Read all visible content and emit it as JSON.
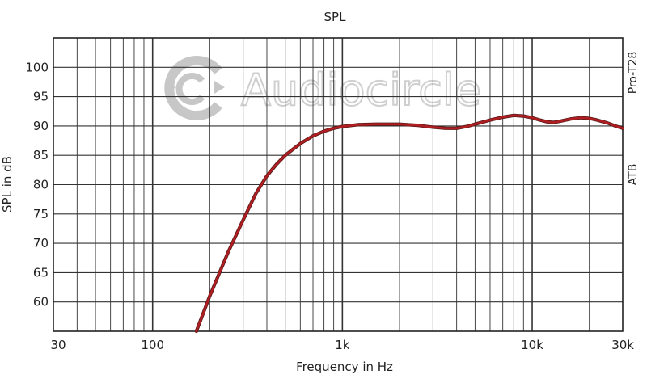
{
  "chart_data": {
    "type": "line",
    "title": "SPL",
    "xlabel": "Frequency in Hz",
    "ylabel": "SPL in dB",
    "x_scale": "log",
    "xlim": [
      30,
      30000
    ],
    "ylim": [
      55,
      105
    ],
    "x_tick_values": [
      30,
      100,
      1000,
      10000,
      30000
    ],
    "x_tick_labels": [
      "30",
      "100",
      "1k",
      "10k",
      "30k"
    ],
    "y_ticks": [
      60,
      65,
      70,
      75,
      80,
      85,
      90,
      95,
      100
    ],
    "grid": true,
    "right_labels": [
      "Pro-T28",
      "ATB"
    ],
    "watermark": "Audiocircle",
    "series": [
      {
        "color": "#b01e22",
        "x": [
          170,
          200,
          250,
          300,
          350,
          400,
          450,
          500,
          600,
          700,
          800,
          900,
          1000,
          1200,
          1500,
          2000,
          2500,
          3000,
          3500,
          4000,
          4500,
          5000,
          6000,
          7000,
          8000,
          9000,
          10000,
          11000,
          12000,
          13000,
          14000,
          16000,
          18000,
          20000,
          22000,
          25000,
          28000,
          30000
        ],
        "y": [
          55,
          61,
          68.5,
          74,
          78.5,
          81.5,
          83.5,
          85,
          87,
          88.3,
          89.1,
          89.6,
          89.9,
          90.2,
          90.3,
          90.3,
          90.1,
          89.8,
          89.6,
          89.6,
          89.9,
          90.3,
          91.0,
          91.5,
          91.8,
          91.7,
          91.4,
          91.0,
          90.7,
          90.6,
          90.8,
          91.2,
          91.4,
          91.3,
          91.0,
          90.5,
          89.9,
          89.6
        ]
      }
    ]
  }
}
